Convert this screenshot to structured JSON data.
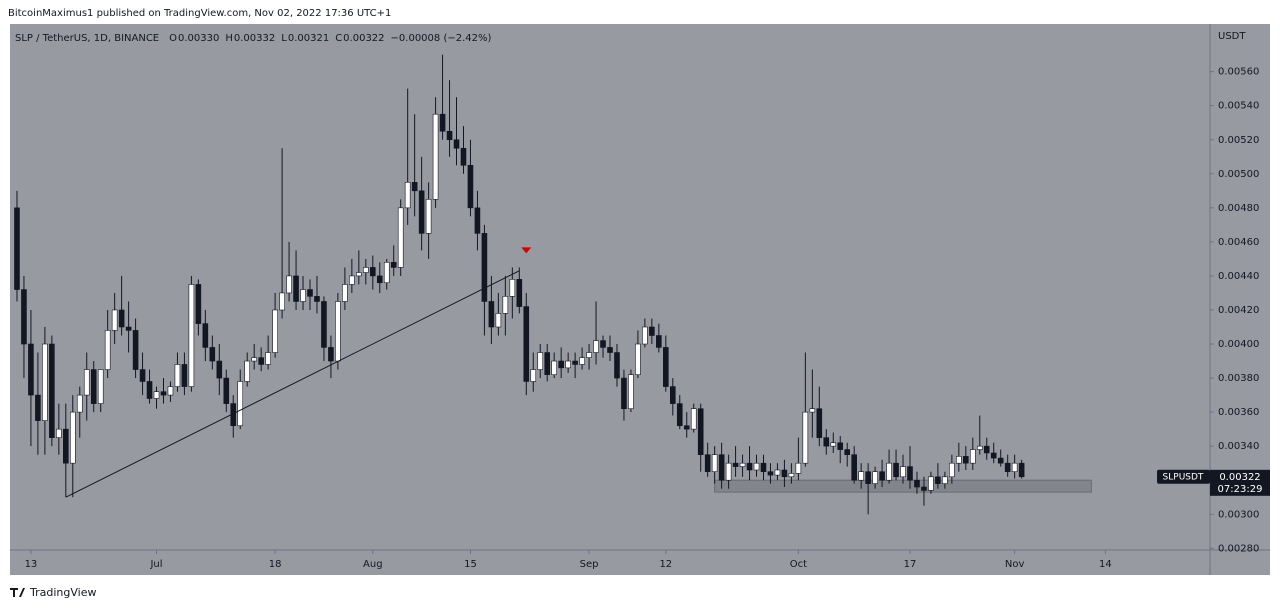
{
  "header": "BitcoinMaximus1 published on TradingView.com, Nov 02, 2022 17:36 UTC+1",
  "footer": "TradingView",
  "chart_data": {
    "type": "candlestick",
    "legend": {
      "symbol": "SLP / TetherUS, 1D, BINANCE",
      "items": [
        {
          "key": "O",
          "value": "0.00330"
        },
        {
          "key": "H",
          "value": "0.00332"
        },
        {
          "key": "L",
          "value": "0.00321"
        },
        {
          "key": "C",
          "value": "0.00322"
        }
      ],
      "change": "−0.00008 (−2.42%)"
    },
    "y_axis_title": "USDT",
    "last_price": {
      "symbol": "SLPUSDT",
      "price": "0.00322",
      "countdown": "07:23:29"
    },
    "background": "#989aa2",
    "up_color": "#ffffff",
    "down_color": "#131722",
    "annotation_color": "#131722",
    "marker_color": "#d50000",
    "xlim": [
      "Jun 10",
      "Nov 29"
    ],
    "xticks": [
      {
        "value": "Jun 13",
        "label": "13"
      },
      {
        "value": "Jul 1",
        "label": "Jul"
      },
      {
        "value": "Jul 18",
        "label": "18"
      },
      {
        "value": "Aug 1",
        "label": "Aug"
      },
      {
        "value": "Aug 15",
        "label": "15"
      },
      {
        "value": "Sep 1",
        "label": "Sep"
      },
      {
        "value": "Sep 12",
        "label": "12"
      },
      {
        "value": "Oct 1",
        "label": "Oct"
      },
      {
        "value": "Oct 17",
        "label": "17"
      },
      {
        "value": "Nov 1",
        "label": "Nov"
      },
      {
        "value": "Nov 14",
        "label": "14"
      }
    ],
    "ylim": [
      0.00279,
      0.00588
    ],
    "yticks": [
      {
        "value": 0.0028,
        "label": "0.00280"
      },
      {
        "value": 0.003,
        "label": "0.00300"
      },
      {
        "value": 0.0032,
        "label": "0.00320"
      },
      {
        "value": 0.0034,
        "label": "0.00340"
      },
      {
        "value": 0.0036,
        "label": "0.00360"
      },
      {
        "value": 0.0038,
        "label": "0.00380"
      },
      {
        "value": 0.004,
        "label": "0.00400"
      },
      {
        "value": 0.0042,
        "label": "0.00420"
      },
      {
        "value": 0.0044,
        "label": "0.00440"
      },
      {
        "value": 0.0046,
        "label": "0.00460"
      },
      {
        "value": 0.0048,
        "label": "0.00480"
      },
      {
        "value": 0.005,
        "label": "0.00500"
      },
      {
        "value": 0.0052,
        "label": "0.00520"
      },
      {
        "value": 0.0054,
        "label": "0.00540"
      },
      {
        "value": 0.0056,
        "label": "0.00560"
      }
    ],
    "trendline": {
      "x": [
        "Jun 18",
        "Aug 22"
      ],
      "y": [
        0.0031,
        0.00443
      ]
    },
    "marker": {
      "x": "Aug 23",
      "y": 0.00455
    },
    "support_zone": {
      "x": [
        "Sep 19",
        "Nov 12"
      ],
      "y": [
        0.00313,
        0.0032
      ]
    },
    "x": [
      "Jun 11",
      "Jun 12",
      "Jun 13",
      "Jun 14",
      "Jun 15",
      "Jun 16",
      "Jun 17",
      "Jun 18",
      "Jun 19",
      "Jun 20",
      "Jun 21",
      "Jun 22",
      "Jun 23",
      "Jun 24",
      "Jun 25",
      "Jun 26",
      "Jun 27",
      "Jun 28",
      "Jun 29",
      "Jun 30",
      "Jul 1",
      "Jul 2",
      "Jul 3",
      "Jul 4",
      "Jul 5",
      "Jul 6",
      "Jul 7",
      "Jul 8",
      "Jul 9",
      "Jul 10",
      "Jul 11",
      "Jul 12",
      "Jul 13",
      "Jul 14",
      "Jul 15",
      "Jul 16",
      "Jul 17",
      "Jul 18",
      "Jul 19",
      "Jul 20",
      "Jul 21",
      "Jul 22",
      "Jul 23",
      "Jul 24",
      "Jul 25",
      "Jul 26",
      "Jul 27",
      "Jul 28",
      "Jul 29",
      "Jul 30",
      "Jul 31",
      "Aug 1",
      "Aug 2",
      "Aug 3",
      "Aug 4",
      "Aug 5",
      "Aug 6",
      "Aug 7",
      "Aug 8",
      "Aug 9",
      "Aug 10",
      "Aug 11",
      "Aug 12",
      "Aug 13",
      "Aug 14",
      "Aug 15",
      "Aug 16",
      "Aug 17",
      "Aug 18",
      "Aug 19",
      "Aug 20",
      "Aug 21",
      "Aug 22",
      "Aug 23",
      "Aug 24",
      "Aug 25",
      "Aug 26",
      "Aug 27",
      "Aug 28",
      "Aug 29",
      "Aug 30",
      "Aug 31",
      "Sep 1",
      "Sep 2",
      "Sep 3",
      "Sep 4",
      "Sep 5",
      "Sep 6",
      "Sep 7",
      "Sep 8",
      "Sep 9",
      "Sep 10",
      "Sep 11",
      "Sep 12",
      "Sep 13",
      "Sep 14",
      "Sep 15",
      "Sep 16",
      "Sep 17",
      "Sep 18",
      "Sep 19",
      "Sep 20",
      "Sep 21",
      "Sep 22",
      "Sep 23",
      "Sep 24",
      "Sep 25",
      "Sep 26",
      "Sep 27",
      "Sep 28",
      "Sep 29",
      "Sep 30",
      "Oct 1",
      "Oct 2",
      "Oct 3",
      "Oct 4",
      "Oct 5",
      "Oct 6",
      "Oct 7",
      "Oct 8",
      "Oct 9",
      "Oct 10",
      "Oct 11",
      "Oct 12",
      "Oct 13",
      "Oct 14",
      "Oct 15",
      "Oct 16",
      "Oct 17",
      "Oct 18",
      "Oct 19",
      "Oct 20",
      "Oct 21",
      "Oct 22",
      "Oct 23",
      "Oct 24",
      "Oct 25",
      "Oct 26",
      "Oct 27",
      "Oct 28",
      "Oct 29",
      "Oct 30",
      "Oct 31",
      "Nov 1",
      "Nov 2"
    ],
    "open": [
      0.0048,
      0.00432,
      0.004,
      0.0037,
      0.00355,
      0.004,
      0.00345,
      0.0035,
      0.0033,
      0.0036,
      0.0037,
      0.00385,
      0.00365,
      0.00385,
      0.00408,
      0.0042,
      0.0041,
      0.00408,
      0.00385,
      0.00378,
      0.00368,
      0.00372,
      0.0037,
      0.00375,
      0.00388,
      0.00375,
      0.00435,
      0.00412,
      0.00398,
      0.0039,
      0.0038,
      0.00365,
      0.00352,
      0.00378,
      0.0039,
      0.00392,
      0.00388,
      0.00395,
      0.0042,
      0.0043,
      0.0044,
      0.00425,
      0.00432,
      0.00428,
      0.00425,
      0.00398,
      0.0039,
      0.00425,
      0.00435,
      0.0044,
      0.00442,
      0.00445,
      0.0044,
      0.00436,
      0.00448,
      0.00445,
      0.0048,
      0.00495,
      0.0049,
      0.00465,
      0.00485,
      0.00535,
      0.00525,
      0.0052,
      0.00515,
      0.00505,
      0.0048,
      0.00465,
      0.00425,
      0.0041,
      0.00418,
      0.00428,
      0.00438,
      0.00422,
      0.00378,
      0.00385,
      0.00395,
      0.00382,
      0.0039,
      0.00386,
      0.0039,
      0.00388,
      0.00392,
      0.00395,
      0.00402,
      0.00398,
      0.00395,
      0.0038,
      0.00362,
      0.00382,
      0.004,
      0.0041,
      0.00405,
      0.00398,
      0.00375,
      0.00365,
      0.00352,
      0.0035,
      0.00362,
      0.00335,
      0.00325,
      0.00335,
      0.0032,
      0.0033,
      0.00328,
      0.0033,
      0.00326,
      0.0033,
      0.00325,
      0.00323,
      0.00326,
      0.00322,
      0.00324,
      0.0033,
      0.0036,
      0.00362,
      0.00345,
      0.0034,
      0.00342,
      0.00338,
      0.00335,
      0.0032,
      0.00325,
      0.00318,
      0.00325,
      0.0032,
      0.0033,
      0.00322,
      0.00328,
      0.0032,
      0.00316,
      0.00314,
      0.00322,
      0.00318,
      0.00322,
      0.0033,
      0.00334,
      0.0033,
      0.00338,
      0.0034,
      0.00336,
      0.00333,
      0.0033,
      0.00325,
      0.0033
    ],
    "high": [
      0.0049,
      0.0044,
      0.0042,
      0.00395,
      0.0041,
      0.00405,
      0.00365,
      0.00365,
      0.0037,
      0.00375,
      0.00395,
      0.0039,
      0.00385,
      0.0042,
      0.0043,
      0.0044,
      0.00425,
      0.00415,
      0.00395,
      0.00385,
      0.00375,
      0.0038,
      0.00378,
      0.00395,
      0.00395,
      0.0044,
      0.00438,
      0.0042,
      0.00405,
      0.004,
      0.00385,
      0.0037,
      0.00385,
      0.00395,
      0.004,
      0.00398,
      0.00405,
      0.0043,
      0.00515,
      0.0046,
      0.00455,
      0.0044,
      0.00438,
      0.0044,
      0.00428,
      0.00405,
      0.0043,
      0.00445,
      0.0045,
      0.00455,
      0.0045,
      0.00452,
      0.00448,
      0.0045,
      0.00458,
      0.00485,
      0.0055,
      0.00535,
      0.0051,
      0.00495,
      0.00545,
      0.0057,
      0.00555,
      0.00545,
      0.00528,
      0.0052,
      0.0049,
      0.0047,
      0.0044,
      0.0043,
      0.0044,
      0.00445,
      0.00445,
      0.0043,
      0.00395,
      0.004,
      0.004,
      0.00395,
      0.00398,
      0.00395,
      0.00395,
      0.00398,
      0.004,
      0.00425,
      0.00405,
      0.00405,
      0.004,
      0.00385,
      0.00385,
      0.00408,
      0.00415,
      0.00415,
      0.00412,
      0.00405,
      0.0038,
      0.0037,
      0.0036,
      0.00365,
      0.00365,
      0.00342,
      0.0034,
      0.00342,
      0.00335,
      0.0034,
      0.00335,
      0.0034,
      0.00335,
      0.00335,
      0.0033,
      0.0033,
      0.00332,
      0.0033,
      0.00345,
      0.00395,
      0.00385,
      0.00375,
      0.0035,
      0.00348,
      0.00346,
      0.00342,
      0.0034,
      0.0033,
      0.0033,
      0.00328,
      0.00332,
      0.00338,
      0.00338,
      0.00335,
      0.0034,
      0.00325,
      0.00322,
      0.00325,
      0.0033,
      0.00325,
      0.00335,
      0.00342,
      0.0034,
      0.00345,
      0.00358,
      0.00345,
      0.00342,
      0.00338,
      0.00335,
      0.00335,
      0.00332
    ],
    "low": [
      0.00425,
      0.0038,
      0.0034,
      0.00335,
      0.00335,
      0.0034,
      0.00335,
      0.0031,
      0.0031,
      0.00345,
      0.00355,
      0.0036,
      0.0036,
      0.0038,
      0.004,
      0.00405,
      0.00395,
      0.0038,
      0.0037,
      0.00365,
      0.00362,
      0.00365,
      0.00366,
      0.00372,
      0.0037,
      0.00372,
      0.00405,
      0.0039,
      0.00385,
      0.0037,
      0.0036,
      0.00345,
      0.0035,
      0.00375,
      0.00385,
      0.00384,
      0.00385,
      0.00392,
      0.00415,
      0.00425,
      0.0042,
      0.0042,
      0.0042,
      0.00418,
      0.0039,
      0.0038,
      0.00385,
      0.0042,
      0.0043,
      0.00435,
      0.00435,
      0.00432,
      0.0043,
      0.00432,
      0.0044,
      0.0044,
      0.0047,
      0.00475,
      0.00455,
      0.0045,
      0.0048,
      0.0052,
      0.0051,
      0.00505,
      0.005,
      0.00475,
      0.00455,
      0.00405,
      0.004,
      0.00405,
      0.00405,
      0.00415,
      0.00418,
      0.0037,
      0.00372,
      0.0038,
      0.00378,
      0.0038,
      0.0038,
      0.00383,
      0.0038,
      0.00385,
      0.00385,
      0.00388,
      0.00392,
      0.0039,
      0.00375,
      0.00355,
      0.0036,
      0.0038,
      0.00398,
      0.004,
      0.00395,
      0.00372,
      0.00358,
      0.0035,
      0.00345,
      0.00348,
      0.00325,
      0.00322,
      0.00318,
      0.00315,
      0.00315,
      0.00322,
      0.00322,
      0.0032,
      0.00322,
      0.0032,
      0.00318,
      0.0032,
      0.00316,
      0.00318,
      0.0032,
      0.00328,
      0.00345,
      0.0034,
      0.00335,
      0.00336,
      0.0033,
      0.00328,
      0.00318,
      0.00315,
      0.003,
      0.00315,
      0.00316,
      0.00318,
      0.0032,
      0.00318,
      0.00315,
      0.00312,
      0.00305,
      0.00312,
      0.00315,
      0.00315,
      0.00318,
      0.00325,
      0.00326,
      0.00326,
      0.00335,
      0.00332,
      0.0033,
      0.00328,
      0.00322,
      0.00321,
      0.00321
    ],
    "close": [
      0.00432,
      0.004,
      0.0037,
      0.00355,
      0.004,
      0.00345,
      0.0035,
      0.0033,
      0.0036,
      0.0037,
      0.00385,
      0.00365,
      0.00385,
      0.00408,
      0.0042,
      0.0041,
      0.00408,
      0.00385,
      0.00378,
      0.00368,
      0.00372,
      0.0037,
      0.00375,
      0.00388,
      0.00375,
      0.00435,
      0.00412,
      0.00398,
      0.0039,
      0.0038,
      0.00365,
      0.00352,
      0.00378,
      0.0039,
      0.00392,
      0.00388,
      0.00395,
      0.0042,
      0.0043,
      0.0044,
      0.00425,
      0.00432,
      0.00428,
      0.00425,
      0.00398,
      0.0039,
      0.00425,
      0.00435,
      0.0044,
      0.00442,
      0.00445,
      0.0044,
      0.00436,
      0.00448,
      0.00445,
      0.0048,
      0.00495,
      0.0049,
      0.00465,
      0.00485,
      0.00535,
      0.00525,
      0.0052,
      0.00515,
      0.00505,
      0.0048,
      0.00465,
      0.00425,
      0.0041,
      0.00418,
      0.00428,
      0.00438,
      0.00422,
      0.00378,
      0.00385,
      0.00395,
      0.00382,
      0.0039,
      0.00386,
      0.0039,
      0.00388,
      0.00392,
      0.00395,
      0.00402,
      0.00398,
      0.00395,
      0.0038,
      0.00362,
      0.00382,
      0.004,
      0.0041,
      0.00405,
      0.00398,
      0.00375,
      0.00365,
      0.00352,
      0.0035,
      0.00362,
      0.00335,
      0.00325,
      0.00335,
      0.0032,
      0.0033,
      0.00328,
      0.0033,
      0.00326,
      0.0033,
      0.00325,
      0.00323,
      0.00326,
      0.00322,
      0.00324,
      0.0033,
      0.0036,
      0.00362,
      0.00345,
      0.0034,
      0.00342,
      0.00338,
      0.00335,
      0.0032,
      0.00325,
      0.00318,
      0.00325,
      0.0032,
      0.0033,
      0.00322,
      0.00328,
      0.0032,
      0.00316,
      0.00314,
      0.00322,
      0.00318,
      0.00322,
      0.0033,
      0.00334,
      0.0033,
      0.00338,
      0.0034,
      0.00336,
      0.00333,
      0.0033,
      0.00325,
      0.0033,
      0.00322
    ]
  }
}
